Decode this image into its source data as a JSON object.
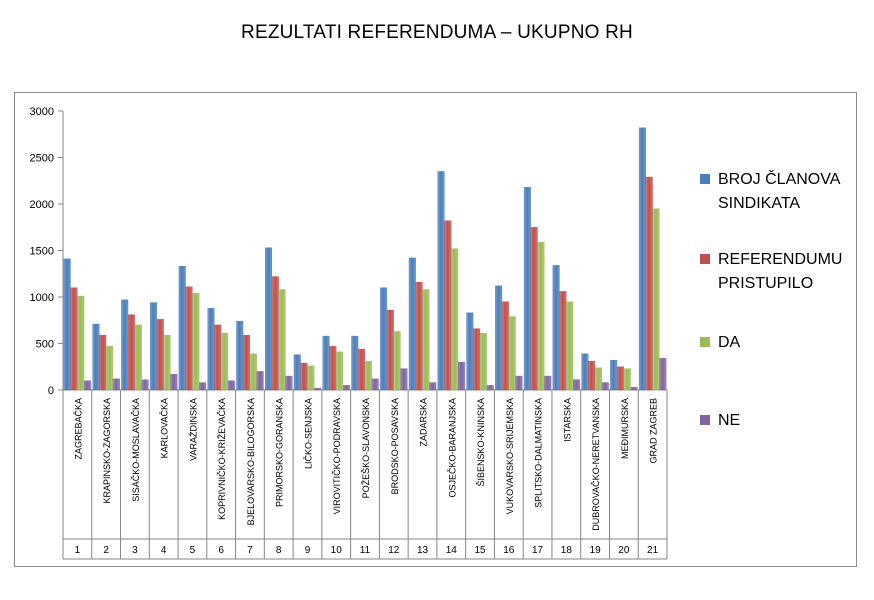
{
  "chart_data": {
    "type": "bar",
    "title": "REZULTATI REFERENDUMA – UKUPNO RH",
    "xlabel": "",
    "ylabel": "",
    "ylim": [
      0,
      3000
    ],
    "yticks": [
      "0",
      "500",
      "1000",
      "1500",
      "2000",
      "2500",
      "3000"
    ],
    "grid": false,
    "legend_position": "right",
    "categories": [
      "ZAGREBAČKA",
      "KRAPINSKO-ZAGORSKA",
      "SISAČKO-MOSLAVAČKA",
      "KARLOVAČKA",
      "VARAŽDINSKA",
      "KOPRIVNIČKO-KRIŽEVAČKA",
      "BJELOVARSKO-BILOGORSKA",
      "PRIMORSKO-GORANSKA",
      "LIČKO-SENJSKA",
      "VIROVITIČKO-PODRAVSKA",
      "POŽEŠKO-SLAVONSKA",
      "BRODSKO-POSAVSKA",
      "ZADARSKA",
      "OSJEČKO-BARANJSKA",
      "ŠIBENSKO-KNINSKA",
      "VUKOVARSKO-SRIJEMSKA",
      "SPLITSKO-DALMATINSKA",
      "ISTARSKA",
      "DUBROVAČKO-NERETVANSKA",
      "MEĐIMURSKA",
      "GRAD ZAGREB"
    ],
    "category_numbers": [
      "1",
      "2",
      "3",
      "4",
      "5",
      "6",
      "7",
      "8",
      "9",
      "10",
      "11",
      "12",
      "13",
      "14",
      "15",
      "16",
      "17",
      "18",
      "19",
      "20",
      "21"
    ],
    "series": [
      {
        "name": "BROJ ČLANOVA SINDIKATA",
        "color": "#4a7ebb",
        "values": [
          1410,
          710,
          970,
          940,
          1330,
          880,
          740,
          1530,
          380,
          580,
          580,
          1100,
          1420,
          2350,
          830,
          1120,
          2180,
          1340,
          390,
          320,
          2820
        ]
      },
      {
        "name": "REFERENDUMU PRISTUPILO",
        "color": "#c0504d",
        "values": [
          1100,
          590,
          810,
          760,
          1110,
          700,
          590,
          1220,
          290,
          470,
          440,
          860,
          1160,
          1820,
          660,
          950,
          1750,
          1060,
          310,
          250,
          2290
        ]
      },
      {
        "name": "DA",
        "color": "#9bbb59",
        "values": [
          1010,
          470,
          700,
          590,
          1040,
          610,
          390,
          1080,
          260,
          410,
          310,
          630,
          1080,
          1520,
          610,
          790,
          1590,
          950,
          240,
          230,
          1950
        ]
      },
      {
        "name": "NE",
        "color": "#8064a2",
        "values": [
          100,
          120,
          110,
          170,
          80,
          100,
          200,
          150,
          20,
          50,
          120,
          230,
          80,
          300,
          50,
          150,
          150,
          110,
          80,
          30,
          340
        ]
      }
    ]
  }
}
